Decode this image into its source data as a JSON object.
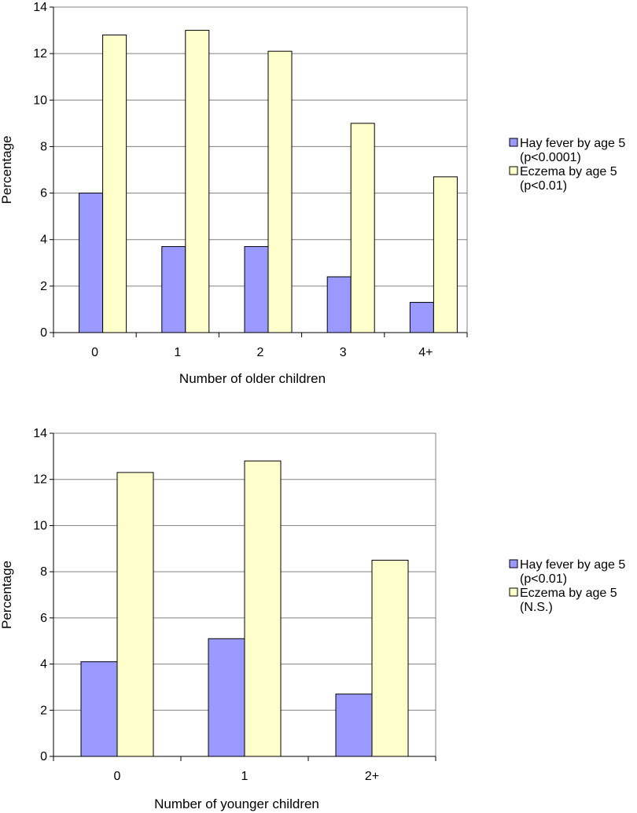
{
  "chart_data": [
    {
      "type": "bar",
      "title": "",
      "xlabel": "Number of older children",
      "ylabel": "Percentage",
      "ylim": [
        0,
        14
      ],
      "yticks": [
        "0",
        "2",
        "4",
        "6",
        "8",
        "10",
        "12",
        "14"
      ],
      "grid": true,
      "legend_position": "right",
      "categories": [
        "0",
        "1",
        "2",
        "3",
        "4+"
      ],
      "series": [
        {
          "name": "Hay fever by age 5",
          "note": "(p<0.0001)",
          "color": "#9999ff",
          "values": [
            6.0,
            3.7,
            3.7,
            2.4,
            1.3
          ]
        },
        {
          "name": "Eczema by age 5",
          "note": "(p<0.01)",
          "color": "#ffffcc",
          "values": [
            12.8,
            13.0,
            12.1,
            9.0,
            6.7
          ]
        }
      ]
    },
    {
      "type": "bar",
      "title": "",
      "xlabel": "Number of younger children",
      "ylabel": "Percentage",
      "ylim": [
        0,
        14
      ],
      "yticks": [
        "0",
        "2",
        "4",
        "6",
        "8",
        "10",
        "12",
        "14"
      ],
      "grid": true,
      "legend_position": "right",
      "categories": [
        "0",
        "1",
        "2+"
      ],
      "series": [
        {
          "name": "Hay fever by age 5",
          "note": "(p<0.01)",
          "color": "#9999ff",
          "values": [
            4.1,
            5.1,
            2.7
          ]
        },
        {
          "name": "Eczema by age 5",
          "note": "(N.S.)",
          "color": "#ffffcc",
          "values": [
            12.3,
            12.8,
            8.5
          ]
        }
      ]
    }
  ]
}
